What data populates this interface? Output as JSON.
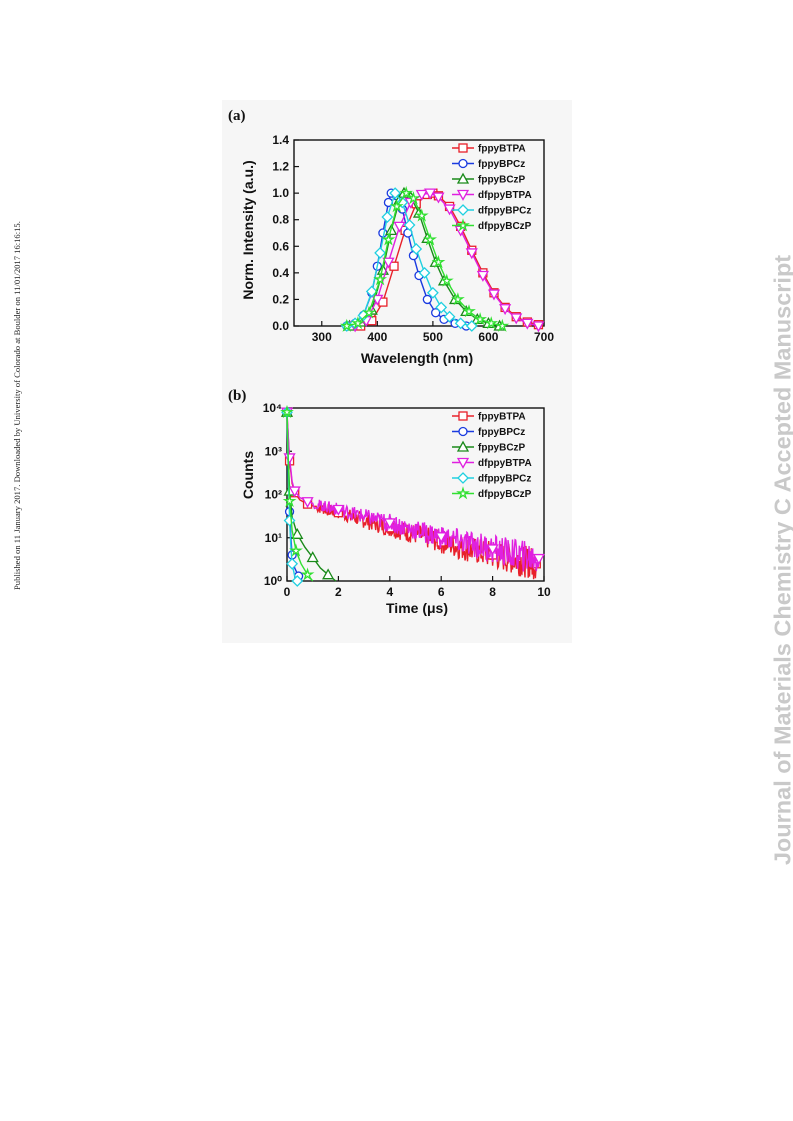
{
  "page": {
    "side_note": "Published on 11 January 2017. Downloaded by University of Colorado at Boulder on 11/01/2017 16:16:15.",
    "watermark": "Journal of Materials Chemistry C Accepted Manuscript"
  },
  "colors": {
    "fppyBTPA": "#e8202a",
    "fppyBPCz": "#1a3be0",
    "fppyBCzP": "#1a8a1a",
    "dfppyBTPA": "#e020e0",
    "dfppyBPCz": "#20d0e0",
    "dfppyBCzP": "#30e030"
  },
  "chart_data": [
    {
      "panel_label": "(a)",
      "type": "line",
      "xlabel": "Wavelength (nm)",
      "ylabel": "Norm. Intensity (a.u.)",
      "xlim": [
        250,
        700
      ],
      "ylim": [
        0.0,
        1.4
      ],
      "xticks": [
        "300",
        "400",
        "500",
        "600",
        "700"
      ],
      "yticks": [
        "0.0",
        "0.2",
        "0.4",
        "0.6",
        "0.8",
        "1.0",
        "1.2",
        "1.4"
      ],
      "legend_position": "top-right",
      "series": [
        {
          "name": "fppyBTPA",
          "marker": "square",
          "peak": 500,
          "x": [
            370,
            390,
            410,
            430,
            450,
            470,
            490,
            500,
            510,
            530,
            550,
            570,
            590,
            610,
            630,
            650,
            670,
            690
          ],
          "y": [
            0.0,
            0.04,
            0.18,
            0.45,
            0.72,
            0.92,
            0.99,
            1.0,
            0.98,
            0.9,
            0.75,
            0.57,
            0.4,
            0.25,
            0.14,
            0.07,
            0.03,
            0.01
          ]
        },
        {
          "name": "fppyBPCz",
          "marker": "circle",
          "peak": 425,
          "x": [
            345,
            360,
            375,
            390,
            400,
            410,
            420,
            425,
            435,
            445,
            455,
            465,
            475,
            490,
            505,
            520,
            540,
            560
          ],
          "y": [
            0.0,
            0.02,
            0.08,
            0.25,
            0.45,
            0.7,
            0.93,
            1.0,
            0.98,
            0.88,
            0.7,
            0.53,
            0.38,
            0.2,
            0.1,
            0.05,
            0.02,
            0.0
          ]
        },
        {
          "name": "fppyBCzP",
          "marker": "triangle-up",
          "peak": 448,
          "x": [
            350,
            370,
            390,
            410,
            425,
            440,
            448,
            460,
            475,
            490,
            505,
            520,
            540,
            560,
            580,
            600,
            620
          ],
          "y": [
            0.0,
            0.03,
            0.12,
            0.42,
            0.72,
            0.95,
            1.0,
            0.97,
            0.85,
            0.66,
            0.48,
            0.34,
            0.2,
            0.11,
            0.05,
            0.02,
            0.0
          ]
        },
        {
          "name": "dfppyBTPA",
          "marker": "triangle-down",
          "peak": 495,
          "x": [
            360,
            380,
            400,
            420,
            440,
            460,
            480,
            495,
            510,
            530,
            550,
            570,
            590,
            610,
            630,
            650,
            670,
            690
          ],
          "y": [
            0.0,
            0.04,
            0.2,
            0.48,
            0.75,
            0.93,
            0.99,
            1.0,
            0.97,
            0.88,
            0.72,
            0.55,
            0.38,
            0.24,
            0.13,
            0.06,
            0.02,
            0.0
          ]
        },
        {
          "name": "dfppyBPCz",
          "marker": "diamond",
          "peak": 432,
          "x": [
            345,
            360,
            375,
            390,
            405,
            418,
            432,
            445,
            458,
            470,
            485,
            500,
            515,
            530,
            550,
            570
          ],
          "y": [
            0.0,
            0.02,
            0.08,
            0.26,
            0.55,
            0.82,
            1.0,
            0.93,
            0.76,
            0.58,
            0.4,
            0.25,
            0.14,
            0.07,
            0.02,
            0.0
          ]
        },
        {
          "name": "dfppyBCzP",
          "marker": "star",
          "peak": 452,
          "x": [
            345,
            365,
            385,
            405,
            420,
            435,
            452,
            465,
            480,
            495,
            510,
            525,
            545,
            565,
            585,
            605,
            625
          ],
          "y": [
            0.0,
            0.02,
            0.1,
            0.35,
            0.65,
            0.9,
            1.0,
            0.96,
            0.83,
            0.65,
            0.48,
            0.34,
            0.2,
            0.11,
            0.05,
            0.02,
            0.0
          ]
        }
      ]
    },
    {
      "panel_label": "(b)",
      "type": "line",
      "xlabel": "Time (μs)",
      "ylabel": "Counts",
      "xlim": [
        0,
        10
      ],
      "ylim": [
        1,
        10000
      ],
      "yscale": "log",
      "xticks": [
        "0",
        "2",
        "4",
        "6",
        "8",
        "10"
      ],
      "yticks": [
        "10⁰",
        "10¹",
        "10²",
        "10³",
        "10⁴"
      ],
      "legend_position": "top-right",
      "series": [
        {
          "name": "fppyBTPA",
          "marker": "square",
          "tau_long_us": 2.4,
          "x": [
            0.0,
            0.05,
            0.1,
            0.2,
            0.3,
            0.5,
            0.8,
            1.2,
            2.0,
            3.0,
            4.0,
            5.0,
            6.0,
            7.0,
            8.0,
            9.0,
            9.7
          ],
          "y": [
            8000,
            2000,
            600,
            180,
            110,
            75,
            60,
            50,
            38,
            25,
            17,
            12,
            8,
            5.5,
            4,
            3,
            2.5
          ]
        },
        {
          "name": "fppyBPCz",
          "marker": "circle",
          "x": [
            0.0,
            0.05,
            0.1,
            0.15,
            0.2,
            0.3,
            0.45,
            0.6
          ],
          "y": [
            8000,
            400,
            40,
            10,
            4,
            2,
            1.3,
            1
          ]
        },
        {
          "name": "fppyBCzP",
          "marker": "triangle-up",
          "x": [
            0.0,
            0.05,
            0.1,
            0.2,
            0.4,
            0.7,
            1.0,
            1.3,
            1.6,
            1.9
          ],
          "y": [
            8000,
            700,
            120,
            30,
            12,
            6,
            3.5,
            2,
            1.4,
            1
          ]
        },
        {
          "name": "dfppyBTPA",
          "marker": "triangle-down",
          "tau_long_us": 2.7,
          "x": [
            0.0,
            0.05,
            0.1,
            0.2,
            0.3,
            0.5,
            0.8,
            1.2,
            2.0,
            3.0,
            4.0,
            5.0,
            6.0,
            7.0,
            8.0,
            9.0,
            9.8
          ],
          "y": [
            8000,
            2200,
            700,
            200,
            120,
            85,
            68,
            58,
            45,
            31,
            22,
            15,
            10.5,
            7.5,
            5.5,
            4,
            3.3
          ]
        },
        {
          "name": "dfppyBPCz",
          "marker": "diamond",
          "x": [
            0.0,
            0.05,
            0.1,
            0.15,
            0.2,
            0.3,
            0.4
          ],
          "y": [
            8000,
            300,
            25,
            6,
            2.5,
            1.3,
            1
          ]
        },
        {
          "name": "dfppyBCzP",
          "marker": "star",
          "x": [
            0.0,
            0.05,
            0.1,
            0.2,
            0.35,
            0.55,
            0.8,
            1.0
          ],
          "y": [
            8000,
            600,
            70,
            15,
            5,
            2.5,
            1.4,
            1
          ]
        }
      ]
    }
  ]
}
